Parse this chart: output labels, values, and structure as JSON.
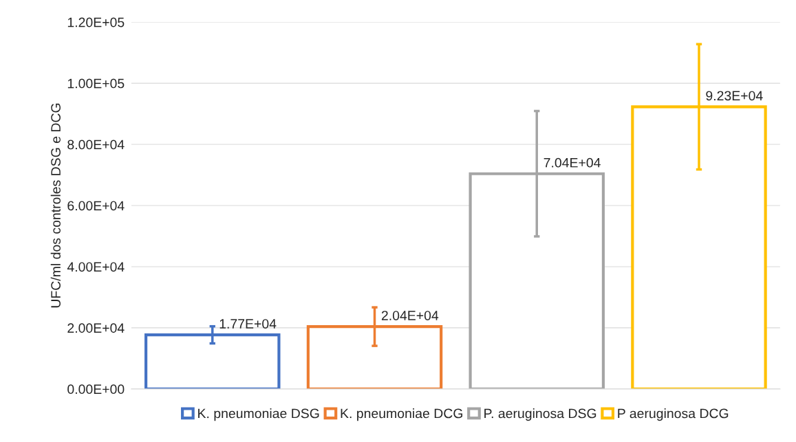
{
  "chart_data": {
    "type": "bar",
    "ylabel": "UFC/ml dos controles DSG e DCG",
    "categories": [
      null,
      null,
      null,
      null
    ],
    "series": [
      {
        "name": "K. pneumoniae DSG",
        "color": "#4472c4",
        "values": [
          17700,
          null,
          null,
          null
        ],
        "errors": [
          2800,
          null,
          null,
          null
        ],
        "value_labels": [
          "1.77E+04",
          null,
          null,
          null
        ]
      },
      {
        "name": "K. pneumoniae DCG",
        "color": "#ed7d31",
        "values": [
          null,
          20400,
          null,
          null
        ],
        "errors": [
          null,
          6300,
          null,
          null
        ],
        "value_labels": [
          null,
          "2.04E+04",
          null,
          null
        ]
      },
      {
        "name": "P. aeruginosa DSG",
        "color": "#a5a5a5",
        "values": [
          null,
          null,
          70400,
          null
        ],
        "errors": [
          null,
          null,
          20500,
          null
        ],
        "value_labels": [
          null,
          null,
          "7.04E+04",
          null
        ]
      },
      {
        "name": "P aeruginosa DCG",
        "color": "#ffc000",
        "values": [
          null,
          null,
          null,
          92300
        ],
        "errors": [
          null,
          null,
          null,
          20500
        ],
        "value_labels": [
          null,
          null,
          null,
          "9.23E+04"
        ]
      }
    ],
    "ylim": [
      0,
      120000
    ],
    "yticks": [
      {
        "value": 0,
        "label": "0.00E+00"
      },
      {
        "value": 20000,
        "label": "2.00E+04"
      },
      {
        "value": 40000,
        "label": "4.00E+04"
      },
      {
        "value": 60000,
        "label": "6.00E+04"
      },
      {
        "value": 80000,
        "label": "8.00E+04"
      },
      {
        "value": 100000,
        "label": "1.00E+05"
      },
      {
        "value": 120000,
        "label": "1.20E+05"
      }
    ],
    "grid": "y",
    "legend": "bottom"
  }
}
